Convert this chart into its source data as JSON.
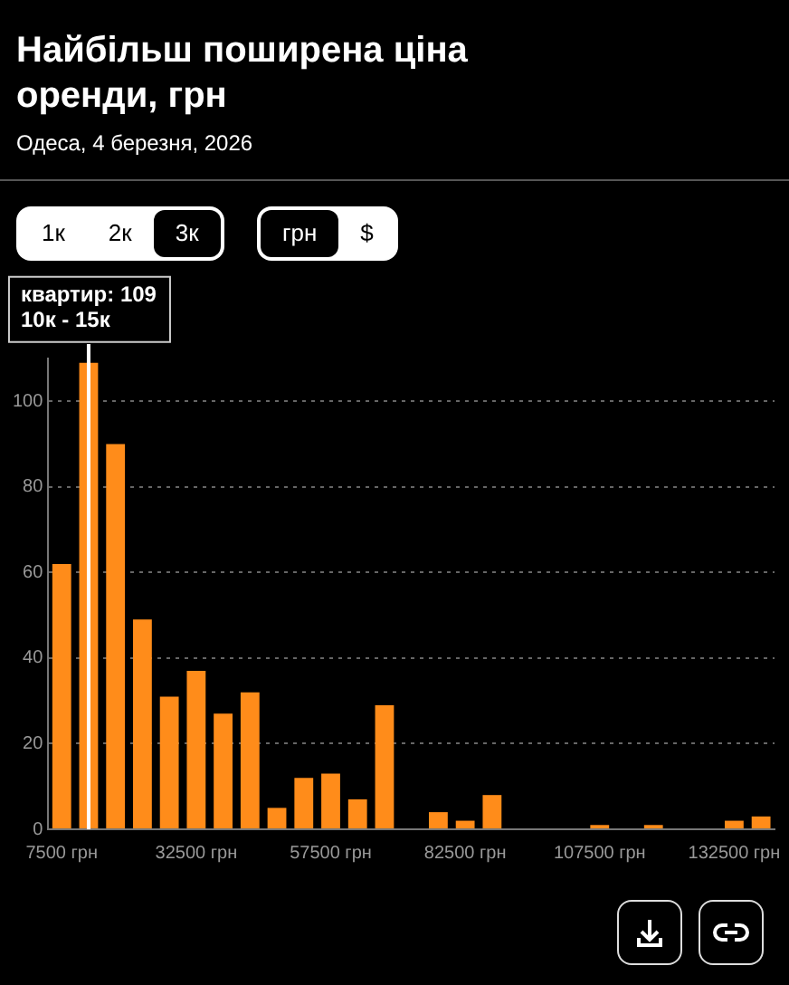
{
  "chart_data": {
    "type": "histogram",
    "title": "Найбільш поширена ціна оренди, грн",
    "subtitle": "Одеса, 4 березня, 2026",
    "annotations": [
      "1к",
      "2к",
      "3к",
      "грн",
      "$",
      {
        "text": "квартир: 109",
        "x": 12500,
        "y": 109
      },
      {
        "text": "10к - 15к",
        "x": 12500,
        "y": 109
      }
    ],
    "bins": [
      5000,
      10000,
      15000,
      20000,
      25000,
      30000,
      35000,
      40000,
      45000,
      50000,
      55000,
      60000,
      65000,
      70000,
      75000,
      80000,
      85000,
      90000,
      95000,
      100000,
      105000,
      110000,
      115000,
      120000,
      125000,
      130000,
      135000,
      140000
    ],
    "values": [
      62,
      109,
      90,
      49,
      31,
      37,
      27,
      32,
      5,
      12,
      13,
      7,
      29,
      0,
      4,
      2,
      8,
      0,
      0,
      0,
      1,
      0,
      1,
      0,
      0,
      2,
      3
    ],
    "color": "#ff8c1a",
    "xlim": [
      5000,
      140000
    ],
    "xticks": [
      {
        "value": 7500,
        "label": "7500 грн"
      },
      {
        "value": 32500,
        "label": "32500 грн"
      },
      {
        "value": 57500,
        "label": "57500 грн"
      },
      {
        "value": 82500,
        "label": "82500 грн"
      },
      {
        "value": 107500,
        "label": "107500 грн"
      },
      {
        "value": 132500,
        "label": "132500 грн"
      }
    ],
    "ylim": [
      0,
      110
    ],
    "yticks": [
      0,
      20,
      40,
      60,
      80,
      100
    ],
    "ref_lines": [
      {
        "axis": "x",
        "value": 12500,
        "color": "#ffffff"
      }
    ],
    "grid": "y",
    "legend": false
  }
}
